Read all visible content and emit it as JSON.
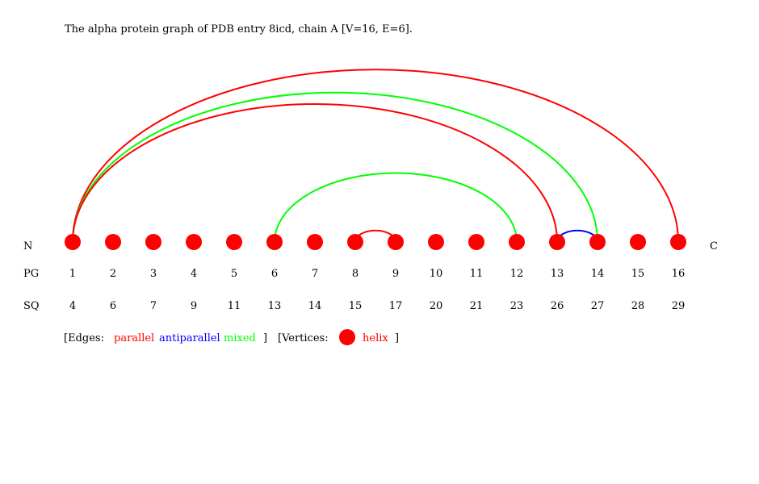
{
  "title": "The alpha protein graph of PDB entry 8icd, chain A [V=16, E=6].",
  "terminus": {
    "n": "N",
    "c": "C"
  },
  "row_labels": {
    "pg": "PG",
    "sq": "SQ"
  },
  "vertices": [
    {
      "pg": "1",
      "sq": "4"
    },
    {
      "pg": "2",
      "sq": "6"
    },
    {
      "pg": "3",
      "sq": "7"
    },
    {
      "pg": "4",
      "sq": "9"
    },
    {
      "pg": "5",
      "sq": "11"
    },
    {
      "pg": "6",
      "sq": "13"
    },
    {
      "pg": "7",
      "sq": "14"
    },
    {
      "pg": "8",
      "sq": "15"
    },
    {
      "pg": "9",
      "sq": "17"
    },
    {
      "pg": "10",
      "sq": "20"
    },
    {
      "pg": "11",
      "sq": "21"
    },
    {
      "pg": "12",
      "sq": "23"
    },
    {
      "pg": "13",
      "sq": "26"
    },
    {
      "pg": "14",
      "sq": "27"
    },
    {
      "pg": "15",
      "sq": "28"
    },
    {
      "pg": "16",
      "sq": "29"
    }
  ],
  "edges": [
    {
      "from": 1,
      "to": 16,
      "type": "parallel"
    },
    {
      "from": 1,
      "to": 14,
      "type": "mixed"
    },
    {
      "from": 1,
      "to": 13,
      "type": "parallel"
    },
    {
      "from": 6,
      "to": 12,
      "type": "mixed"
    },
    {
      "from": 8,
      "to": 9,
      "type": "parallel"
    },
    {
      "from": 13,
      "to": 14,
      "type": "antiparallel"
    }
  ],
  "colors": {
    "parallel": "#ff0000",
    "antiparallel": "#0000ff",
    "mixed": "#00ff00",
    "helix": "#ff0000"
  },
  "legend": {
    "edges_open": "[Edges:",
    "parallel": "parallel",
    "antiparallel": "antiparallel",
    "mixed": "mixed",
    "edges_close": "]",
    "vertices_open": "[Vertices:",
    "helix": "helix",
    "vertices_close": "]"
  }
}
